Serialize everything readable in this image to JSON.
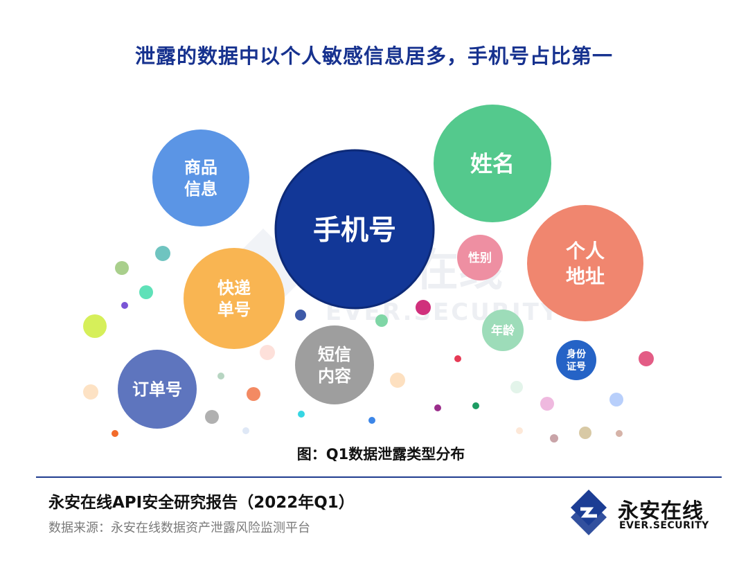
{
  "header": {
    "title": "泄露的数据中以个人敏感信息居多，手机号占比第一"
  },
  "chart_data": {
    "type": "bubble",
    "title": "泄露的数据中以个人敏感信息居多，手机号占比第一",
    "caption": "图：Q1数据泄露类型分布",
    "bubbles": [
      {
        "label": [
          "手机号"
        ],
        "rank": 1,
        "color": "#123797"
      },
      {
        "label": [
          "姓名"
        ],
        "rank": 2,
        "color": "#54c98d"
      },
      {
        "label": [
          "个人",
          "地址"
        ],
        "rank": 3,
        "color": "#f0866f"
      },
      {
        "label": [
          "快递",
          "单号"
        ],
        "rank": 4,
        "color": "#f9b552"
      },
      {
        "label": [
          "商品",
          "信息"
        ],
        "rank": 5,
        "color": "#5b95e5"
      },
      {
        "label": [
          "订单号"
        ],
        "rank": 6,
        "color": "#5e75be"
      },
      {
        "label": [
          "短信",
          "内容"
        ],
        "rank": 7,
        "color": "#9e9e9e"
      },
      {
        "label": [
          "年龄"
        ],
        "rank": 8,
        "color": "#9ddcb9"
      },
      {
        "label": [
          "性别"
        ],
        "rank": 9,
        "color": "#ee8fa2"
      },
      {
        "label": [
          "身份",
          "证号"
        ],
        "rank": 10,
        "color": "#2563c6"
      }
    ]
  },
  "footer": {
    "report_title": "永安在线API安全研究报告（2022年Q1）",
    "source": "数据来源：永安在线数据资产泄露风险监测平台"
  },
  "watermark": {
    "cn": "永安在线",
    "en": "EVER.SECURITY"
  },
  "logo": {
    "cn": "永安在线",
    "en": "EVER.SECURITY",
    "color": "#1c3d94"
  }
}
